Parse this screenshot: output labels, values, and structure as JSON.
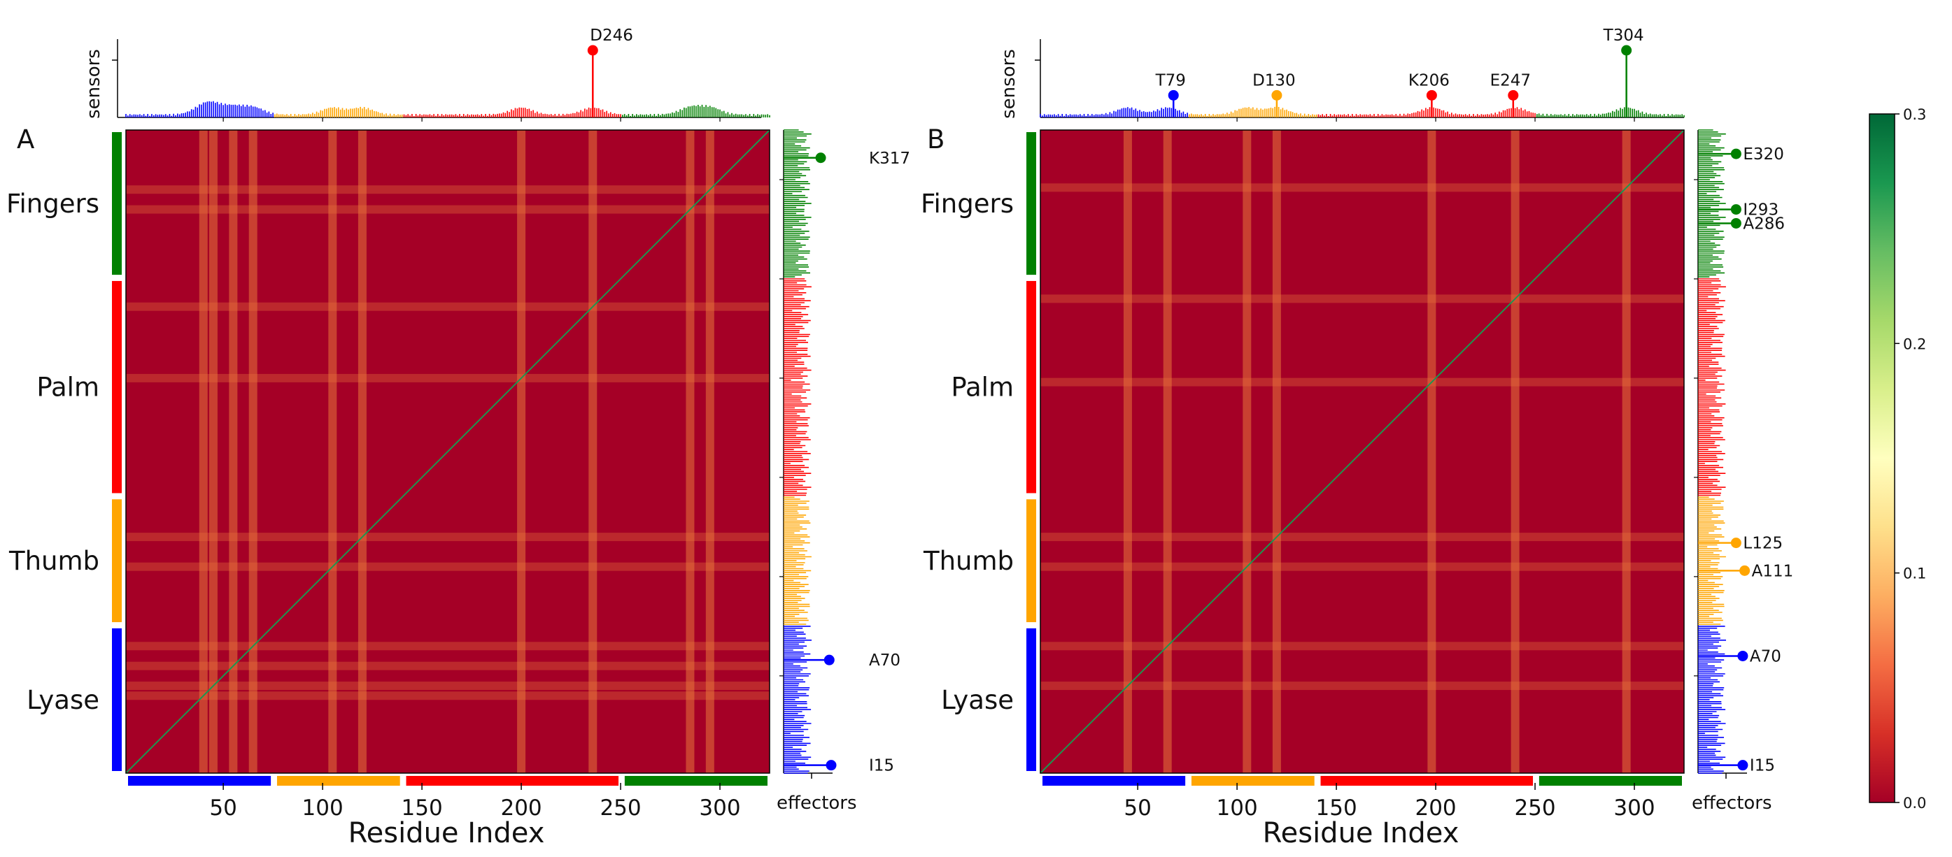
{
  "chart_data": {
    "type": "heatmap",
    "xlabel": "Residue Index",
    "x_ticks": [
      50,
      100,
      150,
      200,
      250,
      300
    ],
    "x_range": [
      1,
      325
    ],
    "sensors_label": "sensors",
    "effectors_label": "effectors",
    "colorbar": {
      "min": 0.0,
      "max": 0.3,
      "ticks": [
        "0.0",
        "0.1",
        "0.2",
        "0.3"
      ],
      "colormap": [
        "#a50026",
        "#d73027",
        "#f46d43",
        "#fdae61",
        "#fee08b",
        "#ffffbf",
        "#d9ef8b",
        "#a6d96a",
        "#66bd63",
        "#1a9850",
        "#006837"
      ]
    },
    "domains": [
      {
        "name": "Lyase",
        "start": 1,
        "end": 75,
        "color": "#0000ff"
      },
      {
        "name": "Thumb",
        "start": 76,
        "end": 140,
        "color": "#ffa500"
      },
      {
        "name": "Palm",
        "start": 141,
        "end": 250,
        "color": "#ff0000"
      },
      {
        "name": "Fingers",
        "start": 251,
        "end": 325,
        "color": "#008000"
      }
    ],
    "panels": [
      {
        "label": "A",
        "sensors": [
          {
            "label": "D246",
            "residue": 236,
            "value": 1.0,
            "color": "#ff0000"
          }
        ],
        "effectors": [
          {
            "label": "K317",
            "residue": 311,
            "value": 0.78,
            "color": "#008000"
          },
          {
            "label": "A70",
            "residue": 58,
            "value": 0.96,
            "color": "#0000ff"
          },
          {
            "label": "I15",
            "residue": 5,
            "value": 1.0,
            "color": "#0000ff"
          }
        ],
        "hotspot_residues": [
          40,
          45,
          55,
          65,
          105,
          120,
          200,
          236,
          285,
          295
        ]
      },
      {
        "label": "B",
        "sensors": [
          {
            "label": "T79",
            "residue": 68,
            "value": 0.33,
            "color": "#0000ff"
          },
          {
            "label": "D130",
            "residue": 120,
            "value": 0.33,
            "color": "#ffa500"
          },
          {
            "label": "K206",
            "residue": 198,
            "value": 0.33,
            "color": "#ff0000"
          },
          {
            "label": "E247",
            "residue": 239,
            "value": 0.33,
            "color": "#ff0000"
          },
          {
            "label": "T304",
            "residue": 296,
            "value": 1.0,
            "color": "#008000"
          }
        ],
        "effectors": [
          {
            "label": "E320",
            "residue": 313,
            "value": 0.8,
            "color": "#008000"
          },
          {
            "label": "I293",
            "residue": 285,
            "value": 0.8,
            "color": "#008000"
          },
          {
            "label": "A286",
            "residue": 278,
            "value": 0.8,
            "color": "#008000"
          },
          {
            "label": "L125",
            "residue": 117,
            "value": 0.8,
            "color": "#ffa500"
          },
          {
            "label": "A111",
            "residue": 103,
            "value": 0.98,
            "color": "#ffa500"
          },
          {
            "label": "A70",
            "residue": 60,
            "value": 0.94,
            "color": "#0000ff"
          },
          {
            "label": "I15",
            "residue": 5,
            "value": 0.94,
            "color": "#0000ff"
          }
        ],
        "hotspot_residues": [
          45,
          65,
          105,
          120,
          198,
          240,
          296
        ]
      }
    ]
  }
}
